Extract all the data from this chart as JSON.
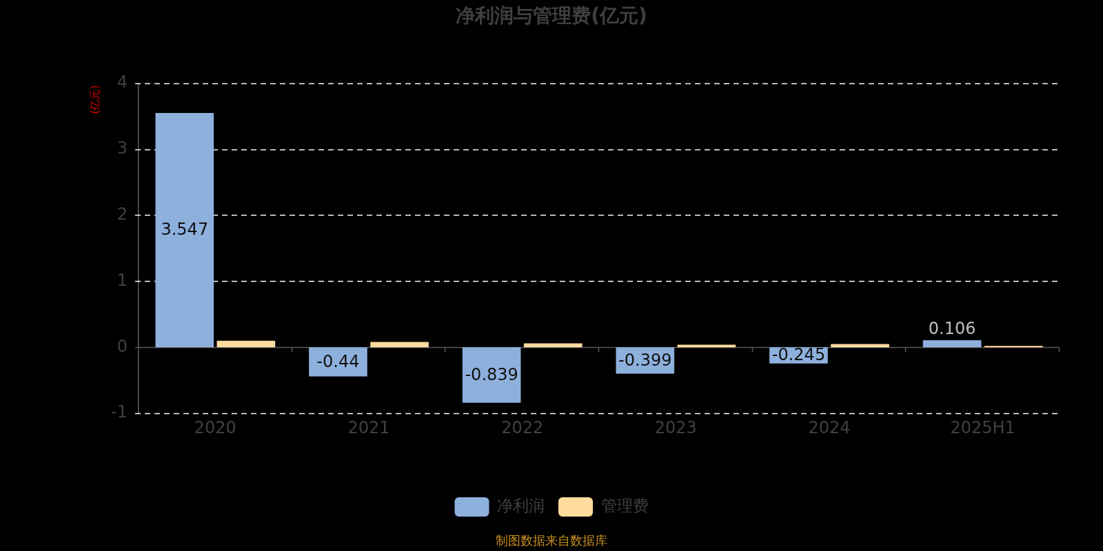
{
  "chart_data": {
    "type": "bar",
    "title": "净利润与管理费(亿元)",
    "ylabel": "(亿元)",
    "categories": [
      "2020",
      "2021",
      "2022",
      "2023",
      "2024",
      "2025H1"
    ],
    "series": [
      {
        "name": "净利润",
        "color": "#8eb0dd",
        "values": [
          3.547,
          -0.44,
          -0.839,
          -0.399,
          -0.245,
          0.106
        ],
        "value_labels": [
          "3.547",
          "-0.44",
          "-0.839",
          "-0.399",
          "-0.245",
          "0.106"
        ]
      },
      {
        "name": "管理费",
        "color": "#ffdb9e",
        "values": [
          0.1,
          0.08,
          0.06,
          0.04,
          0.05,
          0.02
        ]
      }
    ],
    "ylim": [
      -1,
      4
    ],
    "yticks": [
      -1,
      0,
      1,
      2,
      3,
      4
    ],
    "grid": "y",
    "legend": "bottom",
    "annotations": [
      "制图数据来自数据库"
    ]
  }
}
